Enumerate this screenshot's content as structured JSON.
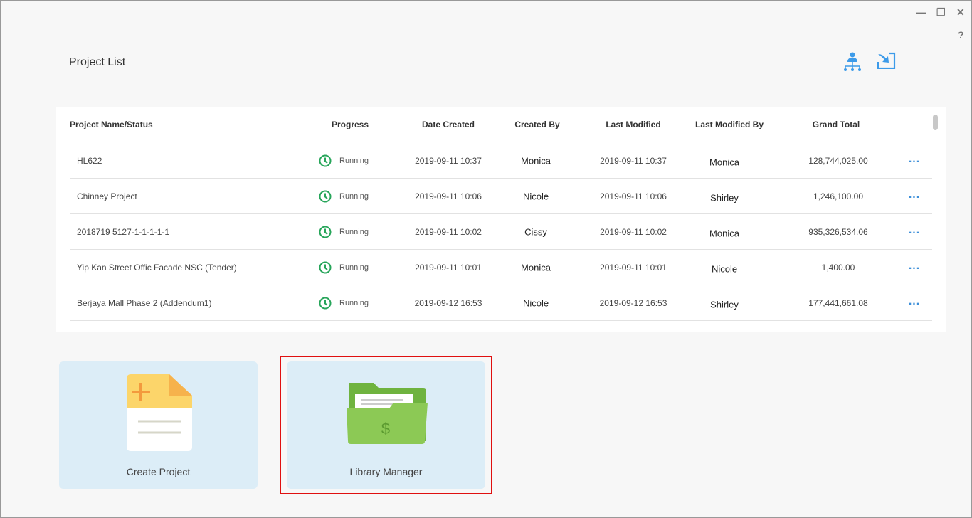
{
  "window": {
    "minimize": "—",
    "restore": "❐",
    "close": "✕",
    "help": "?"
  },
  "header": {
    "title": "Project List",
    "icons": [
      "org-chart-icon",
      "import-icon"
    ]
  },
  "table": {
    "columns": [
      "Project Name/Status",
      "Progress",
      "Date Created",
      "Created By",
      "Last Modified",
      "Last Modified By",
      "Grand Total"
    ],
    "rows": [
      {
        "name": "HL622",
        "status": "Running",
        "created": "2019-09-11 10:37",
        "created_by": "Monica",
        "modified": "2019-09-11 10:37",
        "modified_by": "Monica",
        "total": "128,744,025.00",
        "more": "..."
      },
      {
        "name": "Chinney Project",
        "status": "Running",
        "created": "2019-09-11 10:06",
        "created_by": "Nicole",
        "modified": "2019-09-11 10:06",
        "modified_by": "Shirley",
        "total": "1,246,100.00",
        "more": "..."
      },
      {
        "name": "2018719  5127-1-1-1-1-1",
        "status": "Running",
        "created": "2019-09-11 10:02",
        "created_by": "Cissy",
        "modified": "2019-09-11 10:02",
        "modified_by": "Monica",
        "total": "935,326,534.06",
        "more": "..."
      },
      {
        "name": "Yip Kan Street Offic Facade NSC (Tender)",
        "status": "Running",
        "created": "2019-09-11 10:01",
        "created_by": "Monica",
        "modified": "2019-09-11 10:01",
        "modified_by": "Nicole",
        "total": "1,400.00",
        "more": "..."
      },
      {
        "name": "Berjaya Mall Phase 2 (Addendum1)",
        "status": "Running",
        "created": "2019-09-12 16:53",
        "created_by": "Nicole",
        "modified": "2019-09-12 16:53",
        "modified_by": "Shirley",
        "total": "177,441,661.08",
        "more": "..."
      }
    ]
  },
  "cards": {
    "create": "Create Project",
    "library": "Library Manager"
  },
  "colors": {
    "accent": "#3d9be9",
    "running": "#27a55a",
    "selection": "#e01010"
  }
}
